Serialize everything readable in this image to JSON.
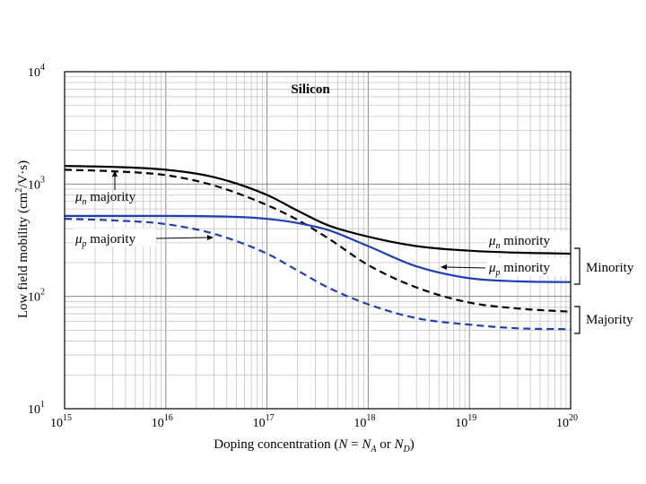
{
  "chart_data": {
    "type": "line",
    "title": "Silicon",
    "xscale": "log",
    "yscale": "log",
    "xlim": [
      1000000000000000.0,
      1e+20
    ],
    "ylim": [
      10,
      10000
    ],
    "grid": true,
    "xlabel": {
      "prefix": "Doping concentration (",
      "n_var": "N",
      "eq": " = ",
      "na_var": "N",
      "na_sub": "A",
      "or": " or ",
      "nd_var": "N",
      "nd_sub": "D",
      "suffix": ")"
    },
    "ylabel": {
      "prefix": "Low field mobility (cm",
      "sup": "2",
      "suffix": "/V·s)"
    },
    "x_ticks": [
      {
        "base": "10",
        "exp": "15",
        "value": 1000000000000000.0
      },
      {
        "base": "10",
        "exp": "16",
        "value": 1e+16
      },
      {
        "base": "10",
        "exp": "17",
        "value": 1e+17
      },
      {
        "base": "10",
        "exp": "18",
        "value": 1e+18
      },
      {
        "base": "10",
        "exp": "19",
        "value": 1e+19
      },
      {
        "base": "10",
        "exp": "20",
        "value": 1e+20
      }
    ],
    "y_ticks": [
      {
        "base": "10",
        "exp": "1",
        "value": 10
      },
      {
        "base": "10",
        "exp": "2",
        "value": 100
      },
      {
        "base": "10",
        "exp": "3",
        "value": 1000
      },
      {
        "base": "10",
        "exp": "4",
        "value": 10000
      }
    ],
    "series": [
      {
        "id": "mu_n_minority",
        "name": "μn minority",
        "color": "#000000",
        "dash": false,
        "x": [
          1000000000000000.0,
          3000000000000000.0,
          1e+16,
          3e+16,
          1e+17,
          2e+17,
          4e+17,
          1e+18,
          3e+18,
          1e+19,
          3e+19,
          1e+20
        ],
        "y": [
          1450,
          1420,
          1340,
          1150,
          800,
          580,
          430,
          340,
          280,
          255,
          245,
          240
        ]
      },
      {
        "id": "mu_n_majority",
        "name": "μn majority",
        "color": "#000000",
        "dash": true,
        "x": [
          1000000000000000.0,
          3000000000000000.0,
          1e+16,
          3e+16,
          1e+17,
          2e+17,
          4e+17,
          1e+18,
          3e+18,
          1e+19,
          3e+19,
          1e+20
        ],
        "y": [
          1340,
          1300,
          1200,
          970,
          650,
          480,
          330,
          190,
          120,
          88,
          78,
          73
        ]
      },
      {
        "id": "mu_p_minority",
        "name": "μp minority",
        "color": "#1f3fb4",
        "dash": false,
        "x": [
          1000000000000000.0,
          1e+16,
          5e+16,
          1e+17,
          2e+17,
          4e+17,
          1e+18,
          3e+18,
          1e+19,
          3e+19,
          1e+20
        ],
        "y": [
          520,
          520,
          510,
          490,
          450,
          390,
          280,
          185,
          145,
          136,
          134
        ]
      },
      {
        "id": "mu_p_majority",
        "name": "μp majority",
        "color": "#1f3fb4",
        "dash": true,
        "x": [
          1000000000000000.0,
          3000000000000000.0,
          1e+16,
          3e+16,
          1e+17,
          2e+17,
          4e+17,
          1e+18,
          3e+18,
          1e+19,
          3e+19,
          1e+20
        ],
        "y": [
          490,
          475,
          440,
          360,
          240,
          170,
          120,
          85,
          64,
          56,
          52,
          51
        ]
      }
    ],
    "annotations": {
      "mu_n_majority": {
        "mu": "μ",
        "sub": "n",
        "text": " majority"
      },
      "mu_p_majority": {
        "mu": "μ",
        "sub": "p",
        "text": " majority"
      },
      "mu_n_minority": {
        "mu": "μ",
        "sub": "n",
        "text": " minority"
      },
      "mu_p_minority": {
        "mu": "μ",
        "sub": "p",
        "text": " minority"
      }
    },
    "groups": {
      "minority": "Minority",
      "majority": "Majority"
    }
  }
}
